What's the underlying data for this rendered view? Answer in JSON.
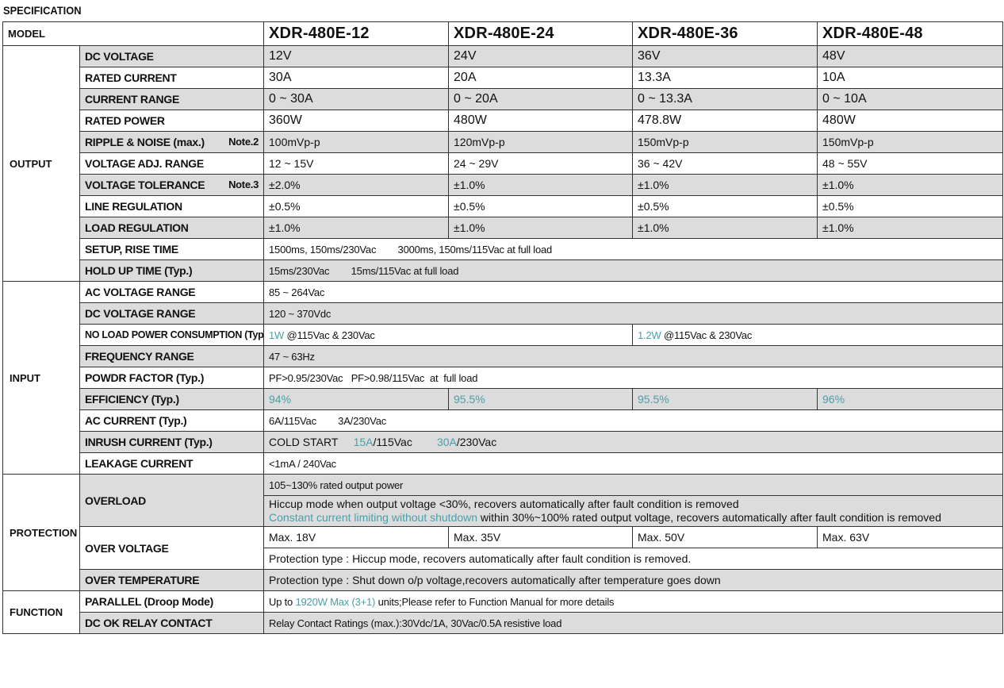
{
  "title": "SPECIFICATION",
  "colors": {
    "highlight": "#4a9fa8",
    "row_shade": "#dcdcdc"
  },
  "model": {
    "label": "MODEL",
    "names": [
      "XDR-480E-12",
      "XDR-480E-24",
      "XDR-480E-36",
      "XDR-480E-48"
    ]
  },
  "groups": [
    {
      "name": "OUTPUT",
      "rows": [
        {
          "label": "DC VOLTAGE",
          "cells": [
            "12V",
            "24V",
            "36V",
            "48V"
          ],
          "size": "big",
          "grey": true
        },
        {
          "label": "RATED CURRENT",
          "cells": [
            "30A",
            "20A",
            "13.3A",
            "10A"
          ],
          "size": "big"
        },
        {
          "label": "CURRENT RANGE",
          "cells": [
            "0 ~ 30A",
            "0 ~ 20A",
            "0 ~ 13.3A",
            "0 ~ 10A"
          ],
          "size": "big",
          "grey": true
        },
        {
          "label": "RATED POWER",
          "cells": [
            "360W",
            "480W",
            "478.8W",
            "480W"
          ],
          "size": "big"
        },
        {
          "label": "RIPPLE & NOISE (max.)",
          "note": "Note.2",
          "cells": [
            "100mVp-p",
            "120mVp-p",
            "150mVp-p",
            "150mVp-p"
          ],
          "grey": true
        },
        {
          "label": "VOLTAGE ADJ. RANGE",
          "cells": [
            "12 ~ 15V",
            "24 ~ 29V",
            "36 ~ 42V",
            "48 ~ 55V"
          ]
        },
        {
          "label": "VOLTAGE TOLERANCE",
          "note": "Note.3",
          "cells": [
            "±2.0%",
            "±1.0%",
            "±1.0%",
            "±1.0%"
          ],
          "grey": true
        },
        {
          "label": "LINE REGULATION",
          "cells": [
            "±0.5%",
            "±0.5%",
            "±0.5%",
            "±0.5%"
          ]
        },
        {
          "label": "LOAD REGULATION",
          "cells": [
            "±1.0%",
            "±1.0%",
            "±1.0%",
            "±1.0%"
          ],
          "grey": true
        },
        {
          "label": "SETUP, RISE TIME",
          "span": [
            {
              "t": "1500ms, 150ms/230Vac        3000ms, 150ms/115Vac at full load"
            }
          ],
          "size": "sm"
        },
        {
          "label": "HOLD UP TIME (Typ.)",
          "span": [
            {
              "t": "15ms/230Vac        15ms/115Vac at full load"
            }
          ],
          "size": "sm",
          "grey": true
        }
      ]
    },
    {
      "name": "INPUT",
      "rows": [
        {
          "label": "AC VOLTAGE RANGE",
          "span": [
            {
              "t": "85 ~ 264Vac"
            }
          ],
          "size": "sm"
        },
        {
          "label": "DC VOLTAGE RANGE",
          "span": [
            {
              "t": "120 ~ 370Vdc"
            }
          ],
          "size": "sm",
          "grey": true
        },
        {
          "label": "NO LOAD POWER CONSUMPTION (Typ.)",
          "halves": [
            [
              {
                "t": "1W",
                "hl": true
              },
              {
                "t": " @115Vac & 230Vac"
              }
            ],
            [
              {
                "t": "1.2W",
                "hl": true
              },
              {
                "t": " @115Vac & 230Vac"
              }
            ]
          ],
          "size": "sm",
          "labelsm": true
        },
        {
          "label": "FREQUENCY RANGE",
          "span": [
            {
              "t": "47 ~ 63Hz"
            }
          ],
          "size": "sm",
          "grey": true
        },
        {
          "label": "POWDR FACTOR (Typ.)",
          "span": [
            {
              "t": "PF>0.95/230Vac   PF>0.98/115Vac  at  full load"
            }
          ],
          "size": "sm"
        },
        {
          "label": "EFFICIENCY (Typ.)",
          "cells": [
            "94%",
            "95.5%",
            "95.5%",
            "96%"
          ],
          "hlcells": true,
          "grey": true
        },
        {
          "label": "AC CURRENT (Typ.)",
          "span": [
            {
              "t": "6A/115Vac        3A/230Vac"
            }
          ],
          "size": "sm"
        },
        {
          "label": "INRUSH CURRENT (Typ.)",
          "span": [
            {
              "t": "COLD START     "
            },
            {
              "t": "15A",
              "hl": true
            },
            {
              "t": "/115Vac        "
            },
            {
              "t": "30A",
              "hl": true
            },
            {
              "t": "/230Vac"
            }
          ],
          "grey": true
        },
        {
          "label": "LEAKAGE CURRENT",
          "span": [
            {
              "t": "<1mA / 240Vac"
            }
          ],
          "size": "sm"
        }
      ]
    },
    {
      "name": "PROTECTION",
      "rows": [
        {
          "label": "OVERLOAD",
          "grey": true,
          "sub": [
            {
              "span": [
                {
                  "t": "105~130% rated output power"
                }
              ],
              "size": "sm"
            },
            {
              "lines": [
                [
                  {
                    "t": "Hiccup mode when output voltage <30%, recovers automatically after fault condition is removed"
                  }
                ],
                [
                  {
                    "t": "Constant current limiting without shutdown",
                    "hl": true
                  },
                  {
                    "t": " within 30%~100% rated output voltage, recovers automatically after fault condition is removed"
                  }
                ]
              ]
            }
          ]
        },
        {
          "label": "OVER VOLTAGE",
          "sub": [
            {
              "cells": [
                "Max. 18V",
                "Max. 35V",
                "Max. 50V",
                "Max. 63V"
              ]
            },
            {
              "span": [
                {
                  "t": "Protection type : Hiccup mode, recovers automatically after fault condition is removed."
                }
              ]
            }
          ]
        },
        {
          "label": "OVER TEMPERATURE",
          "span": [
            {
              "t": "Protection type : Shut down o/p voltage,recovers automatically after temperature goes down"
            }
          ],
          "grey": true
        }
      ]
    },
    {
      "name": "FUNCTION",
      "rows": [
        {
          "label": "PARALLEL (Droop Mode)",
          "span": [
            {
              "t": "Up to "
            },
            {
              "t": "1920W Max (3+1)",
              "hl": true
            },
            {
              "t": " units;Please refer to Function Manual for more details"
            }
          ],
          "size": "sm"
        },
        {
          "label": "DC OK RELAY CONTACT",
          "span": [
            {
              "t": "Relay Contact Ratings (max.):30Vdc/1A, 30Vac/0.5A resistive load"
            }
          ],
          "size": "sm",
          "grey": true
        }
      ]
    }
  ]
}
